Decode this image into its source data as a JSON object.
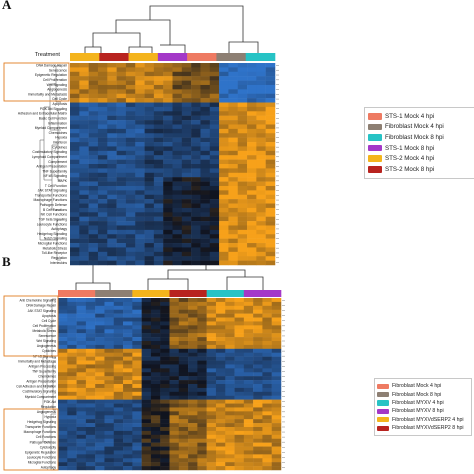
{
  "figure": {
    "panels": [
      {
        "letter": "A",
        "treatment_label": "Treatment",
        "column_groups": [
          "#f4b41c",
          "#b8231f",
          "#f4b41c",
          "#a438c8",
          "#ee7a62",
          "#8d7f73",
          "#27c3c5"
        ],
        "row_labels": [
          "DNA Damage Repair",
          "Senescence",
          "Epigenetic Regulation",
          "Cell Proliferation",
          "Wnt Signaling",
          "Angiogenesis",
          "Immortality and Metastasis",
          "Cell Cycle",
          "Apoptosis",
          "PI3K Akt Signaling",
          "Adhesion and Extracellular Matrix",
          "Basic Cell Function",
          "Inflammation",
          "Myeloid Compartment",
          "Chemokines",
          "Hypoxia",
          "Interferon",
          "Cytokines",
          "Costimulatory Signaling",
          "Lymphoid Compartment",
          "Complement",
          "Antigen Presentation",
          "TNF Superfamily",
          "NF kB Signaling",
          "MAPK",
          "T Cell Function",
          "JAK STAT Signaling",
          "Transporter Functions",
          "Macrophage Functions",
          "Pathogen Defense",
          "B Cell Functions",
          "NK Cell Functions",
          "TGF beta Signaling",
          "Leukocyte Functions",
          "Autophagy",
          "Hedgehog Signaling",
          "Notch Signaling",
          "Microglial Functions",
          "Metabolic Stress",
          "Toll-like Receptor",
          "Regulation",
          "Interleukins"
        ],
        "highlight_rows": 10
      },
      {
        "letter": "B",
        "column_groups": [
          "#ee7a62",
          "#8d7f73",
          "#f4b41c",
          "#b8231f",
          "#27c3c5",
          "#a438c8"
        ],
        "row_labels": [
          "Anti Chemokine Signaling",
          "DNA Damage Repair",
          "JAK STAT Signaling",
          "Apoptosis",
          "Cell Cycle",
          "Cell Proliferation",
          "Metabolic Stress",
          "Senescence",
          "Wnt Signaling",
          "Angiogenesis",
          "Cytokines",
          "NF kB Signaling",
          "Immortality and Metastasis",
          "Antigen Processing",
          "TNF Superfamily",
          "Chemokines",
          "Antigen Presentation",
          "Cell Adhesion and Migration",
          "Costimulatory Signaling",
          "Myeloid Compartment",
          "PI3K Akt",
          "Regulation",
          "Angiogenesis",
          "Hypoxia",
          "Hedgehog Signaling",
          "Transporter Functions",
          "Macrophage Functions",
          "Cell Functions",
          "Pathogen Defense",
          "Cytotoxicity",
          "Epigenetic Regulation",
          "Leukocyte Functions",
          "Microglial Functions",
          "Autophagy"
        ]
      }
    ],
    "legend_a": [
      {
        "label": "STS-1 Mock 4 hpi",
        "color": "#ee7a62"
      },
      {
        "label": "Fibroblast Mock 4 hpi",
        "color": "#8d7f73"
      },
      {
        "label": "Fibroblast Mock 8 hpi",
        "color": "#27c3c5"
      },
      {
        "label": "STS-1 Mock 8 hpi",
        "color": "#a438c8"
      },
      {
        "label": "STS-2 Mock 4 hpi",
        "color": "#f4b41c"
      },
      {
        "label": "STS-2 Mock 8 hpi",
        "color": "#b8231f"
      }
    ],
    "legend_b": [
      {
        "label": "Fibroblast Mock 4 hpi",
        "color": "#ee7a62"
      },
      {
        "label": "Fibroblast Mock 8 hpi",
        "color": "#8d7f73"
      },
      {
        "label": "Fibroblast MYXV 4 hpi",
        "color": "#27c3c5"
      },
      {
        "label": "Fibroblast MYXV 8 hpi",
        "color": "#a438c8"
      },
      {
        "label": "Fibroblast MYXVdSERP2 4 hpi",
        "color": "#f4b41c"
      },
      {
        "label": "Fibroblast MYXVdSERP2 8 hpi",
        "color": "#b8231f"
      }
    ],
    "colors": {
      "high": "#f7a11a",
      "low": "#2f73c9",
      "mid": "#10131e",
      "highlight_box": "#e07e22"
    }
  }
}
